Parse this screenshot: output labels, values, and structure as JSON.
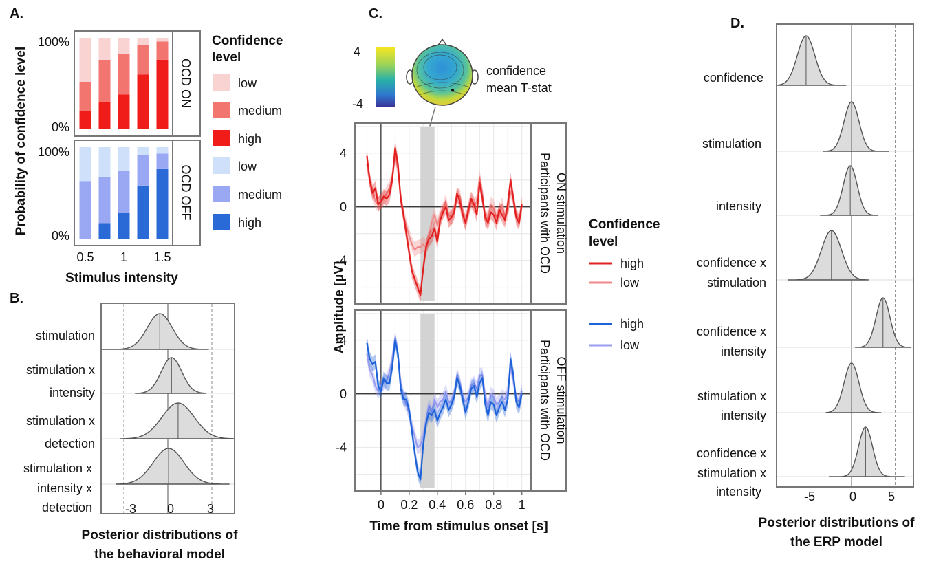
{
  "panels": {
    "A": "A.",
    "B": "B.",
    "C": "C.",
    "D": "D."
  },
  "colors": {
    "on_low": "#f9d2d2",
    "on_medium": "#f27570",
    "on_high": "#f01c1a",
    "off_low": "#cfe0fa",
    "off_medium": "#9aa8f3",
    "off_high": "#2a6ad6",
    "erp_on_high": "#e32020",
    "erp_on_low": "#f08a8a",
    "erp_off_high": "#1d62d8",
    "erp_off_low": "#9a9cf0",
    "shade": "#d3d3d3",
    "density_fill": "#dcdcdc",
    "density_line": "#555555"
  },
  "chart_data": [
    {
      "id": "A",
      "type": "bar",
      "stacked": true,
      "ylabel": "Probability of confidence level",
      "xlabel": "Stimulus intensity",
      "x_ticks": [
        "0.5",
        "1",
        "1.5"
      ],
      "y_ticks": [
        "0%",
        "100%"
      ],
      "ylim": [
        0,
        100
      ],
      "legend_title": "Confidence level",
      "legend": {
        "on": [
          "low",
          "medium",
          "high"
        ],
        "off": [
          "low",
          "medium",
          "high"
        ]
      },
      "categories": [
        "0.5",
        "0.75",
        "1",
        "1.25",
        "1.5"
      ],
      "facets": [
        {
          "label": "OCD ON",
          "series": [
            {
              "key": "high",
              "values": [
                20,
                30,
                38,
                60,
                76
              ]
            },
            {
              "key": "medium",
              "values": [
                32,
                46,
                44,
                32,
                20
              ]
            },
            {
              "key": "low",
              "values": [
                48,
                24,
                18,
                8,
                4
              ]
            }
          ]
        },
        {
          "label": "OCD OFF",
          "series": [
            {
              "key": "high",
              "values": [
                0,
                17,
                28,
                58,
                76
              ]
            },
            {
              "key": "medium",
              "values": [
                63,
                50,
                46,
                33,
                17
              ]
            },
            {
              "key": "low",
              "values": [
                37,
                33,
                26,
                9,
                7
              ]
            }
          ]
        }
      ]
    },
    {
      "id": "B",
      "type": "density",
      "title": "Posterior distributions of the behavioral model",
      "x_ticks": [
        "-3",
        "0",
        "3"
      ],
      "xlim": [
        -4.5,
        4.5
      ],
      "dashed_x": [
        -3,
        3
      ],
      "items": [
        {
          "label": [
            "stimulation"
          ],
          "mean": -0.55,
          "sd": 0.85,
          "min": -4.5,
          "max": 2.8
        },
        {
          "label": [
            "stimulation x",
            "intensity"
          ],
          "mean": 0.25,
          "sd": 0.7,
          "min": -2.2,
          "max": 2.6
        },
        {
          "label": [
            "stimulation x",
            "detection"
          ],
          "mean": 0.7,
          "sd": 1.1,
          "min": -3.2,
          "max": 4.5
        },
        {
          "label": [
            "stimulation x",
            "intensity x",
            "detection"
          ],
          "mean": 0.05,
          "sd": 1.05,
          "min": -3.5,
          "max": 4.2
        }
      ]
    },
    {
      "id": "C",
      "type": "line",
      "xlabel": "Time from stimulus onset [s]",
      "ylabel": "Amplitude [µV]",
      "x_ticks": [
        "0",
        "0.2",
        "0.4",
        "0.6",
        "0.8",
        "1"
      ],
      "y_ticks": [
        "4",
        "0",
        "-4"
      ],
      "xlim": [
        -0.18,
        1.06
      ],
      "ylim": [
        -7.2,
        6.2
      ],
      "shaded_window": [
        0.28,
        0.38
      ],
      "legend_title": "Confidence level",
      "legend": {
        "on": [
          "high",
          "low"
        ],
        "off": [
          "high",
          "low"
        ]
      },
      "topomap": {
        "colorbar_ticks": [
          "4",
          "-4"
        ],
        "label": [
          "confidence",
          "mean T-stat"
        ]
      },
      "x": [
        -0.1,
        -0.08,
        -0.06,
        -0.04,
        -0.02,
        0,
        0.02,
        0.04,
        0.06,
        0.08,
        0.1,
        0.12,
        0.14,
        0.16,
        0.18,
        0.2,
        0.22,
        0.24,
        0.26,
        0.28,
        0.3,
        0.32,
        0.34,
        0.36,
        0.38,
        0.4,
        0.42,
        0.44,
        0.46,
        0.48,
        0.5,
        0.52,
        0.54,
        0.56,
        0.58,
        0.6,
        0.62,
        0.64,
        0.66,
        0.68,
        0.7,
        0.72,
        0.74,
        0.76,
        0.78,
        0.8,
        0.82,
        0.84,
        0.86,
        0.88,
        0.9,
        0.92,
        0.94,
        0.96,
        0.98,
        1.0
      ],
      "facets": [
        {
          "label": [
            "Participants with OCD",
            "ON stimulation"
          ],
          "series": [
            {
              "name": "high",
              "values": [
                3.8,
                2.0,
                1.0,
                1.4,
                0.2,
                0.4,
                0.8,
                0.6,
                0.9,
                2.0,
                4.4,
                3.2,
                0.6,
                -0.6,
                -2.0,
                -3.4,
                -4.8,
                -5.4,
                -6.0,
                -6.6,
                -4.6,
                -3.0,
                -2.4,
                -2.2,
                -1.6,
                -2.6,
                -1.0,
                -0.4,
                0.0,
                -1.0,
                -0.8,
                -0.4,
                1.0,
                0.4,
                -0.6,
                -1.2,
                -0.2,
                0.6,
                0.2,
                -0.6,
                1.8,
                0.6,
                -0.8,
                -1.2,
                -0.4,
                -0.6,
                -1.2,
                -0.2,
                -0.6,
                -1.0,
                0.2,
                2.0,
                0.6,
                -0.8,
                -1.2,
                0.2
              ],
              "band": 0.55
            },
            {
              "name": "low",
              "values": [
                3.2,
                2.0,
                1.2,
                0.4,
                0.2,
                0.4,
                0.6,
                1.0,
                1.4,
                2.2,
                3.8,
                2.8,
                0.8,
                -0.6,
                -1.4,
                -2.2,
                -2.8,
                -3.2,
                -3.0,
                -3.0,
                -2.8,
                -3.0,
                -2.2,
                -1.2,
                -0.6,
                -1.4,
                -0.6,
                -0.2,
                0.4,
                -0.6,
                -0.8,
                -0.2,
                0.8,
                0.8,
                -0.4,
                -1.2,
                -0.4,
                0.4,
                0.0,
                0.4,
                2.2,
                1.0,
                -1.0,
                -0.8,
                0.2,
                0.0,
                -0.8,
                -0.6,
                0.2,
                -0.8,
                -0.4,
                1.2,
                0.6,
                -0.6,
                -1.0,
                0.0
              ],
              "band": 0.55
            }
          ]
        },
        {
          "label": [
            "Participants with OCD",
            "OFF stimulation"
          ],
          "series": [
            {
              "name": "high",
              "values": [
                3.8,
                2.6,
                2.2,
                2.4,
                0.6,
                0.2,
                1.2,
                0.8,
                0.8,
                2.0,
                4.0,
                3.0,
                0.4,
                -0.4,
                -0.4,
                -1.2,
                -2.8,
                -4.4,
                -5.8,
                -6.4,
                -3.8,
                -2.2,
                -1.4,
                -1.6,
                -1.2,
                -2.0,
                -1.4,
                -1.0,
                -0.4,
                -1.2,
                -0.8,
                -0.2,
                1.2,
                0.6,
                -0.4,
                -1.4,
                -0.6,
                0.4,
                0.6,
                -0.2,
                0.8,
                1.2,
                -0.8,
                -1.6,
                -0.6,
                -0.8,
                -1.6,
                -1.0,
                -0.6,
                -1.2,
                -0.4,
                2.6,
                1.4,
                -0.6,
                -1.0,
                0.0
              ],
              "band": 0.55
            },
            {
              "name": "low",
              "values": [
                3.0,
                1.8,
                1.4,
                0.6,
                0.2,
                0.6,
                0.8,
                1.0,
                1.6,
                2.6,
                4.2,
                3.0,
                0.8,
                -0.2,
                -0.8,
                -1.4,
                -2.4,
                -3.2,
                -4.0,
                -3.8,
                -3.2,
                -2.0,
                -0.8,
                -1.4,
                -0.4,
                -1.0,
                -0.6,
                -0.4,
                0.2,
                -0.6,
                -0.6,
                0.0,
                1.4,
                0.8,
                -0.2,
                -0.6,
                -0.2,
                0.6,
                0.8,
                0.4,
                1.4,
                1.4,
                -0.2,
                -1.0,
                0.0,
                -0.2,
                -0.8,
                -0.6,
                -0.2,
                -0.4,
                0.2,
                2.0,
                1.0,
                -0.4,
                -0.6,
                0.2
              ],
              "band": 0.55
            }
          ]
        }
      ]
    },
    {
      "id": "D",
      "type": "density",
      "title": "Posterior distributions of the ERP model",
      "x_ticks": [
        "-5",
        "0",
        "5"
      ],
      "xlim": [
        -8.5,
        7
      ],
      "dashed_x": [
        -5,
        5
      ],
      "items": [
        {
          "label": [
            "confidence"
          ],
          "mean": -5.2,
          "sd": 1.0,
          "min": -8.5,
          "max": -0.6
        },
        {
          "label": [
            "stimulation"
          ],
          "mean": 0.0,
          "sd": 0.85,
          "min": -3.3,
          "max": 4.3
        },
        {
          "label": [
            "intensity"
          ],
          "mean": -0.15,
          "sd": 0.8,
          "min": -3.6,
          "max": 3.0
        },
        {
          "label": [
            "confidence x",
            "stimulation"
          ],
          "mean": -2.3,
          "sd": 1.15,
          "min": -7.3,
          "max": 1.9
        },
        {
          "label": [
            "confidence x",
            "intensity"
          ],
          "mean": 3.6,
          "sd": 0.8,
          "min": 0.4,
          "max": 6.8
        },
        {
          "label": [
            "stimulation x",
            "intensity"
          ],
          "mean": 0.0,
          "sd": 0.85,
          "min": -2.9,
          "max": 3.4
        },
        {
          "label": [
            "confidence x",
            "stimulation x",
            "intensity"
          ],
          "mean": 1.6,
          "sd": 0.8,
          "min": -2.6,
          "max": 6.1
        }
      ]
    }
  ]
}
